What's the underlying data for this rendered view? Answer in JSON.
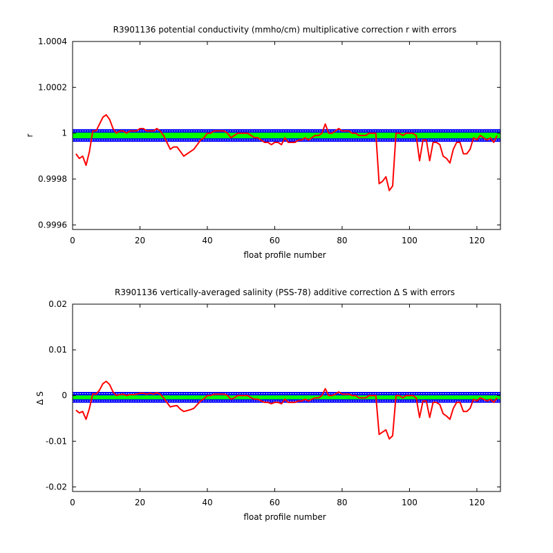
{
  "chart_data": [
    {
      "type": "line",
      "title": "R3901136 potential conductivity (mmho/cm) multiplicative correction r with errors",
      "xlabel": "float profile number",
      "ylabel": "r",
      "xlim": [
        0,
        127
      ],
      "ylim": [
        0.99958,
        1.0004
      ],
      "xticks": [
        0,
        20,
        40,
        60,
        80,
        100,
        120
      ],
      "xtick_labels": [
        "0",
        "20",
        "40",
        "60",
        "80",
        "100",
        "120"
      ],
      "yticks": [
        0.9996,
        0.9998,
        1,
        1.0002,
        1.0004
      ],
      "ytick_labels": [
        "0.9996",
        "0.9998",
        "1",
        "1.0002",
        "1.0004"
      ],
      "grid": false,
      "band": {
        "lower": 0.99997,
        "upper": 1.00001,
        "fill_color": "#00ff00",
        "line_color": "#0000ff",
        "dotted_color": "#ffffff"
      },
      "series": [
        {
          "color": "#ff0000",
          "x": [
            1,
            2,
            3,
            4,
            5,
            6,
            7,
            8,
            9,
            10,
            11,
            12,
            13,
            14,
            15,
            16,
            17,
            18,
            19,
            20,
            21,
            22,
            23,
            24,
            25,
            26,
            27,
            28,
            29,
            30,
            31,
            32,
            33,
            34,
            35,
            36,
            37,
            38,
            39,
            40,
            41,
            42,
            43,
            44,
            45,
            46,
            47,
            48,
            49,
            50,
            51,
            52,
            53,
            54,
            55,
            56,
            57,
            58,
            59,
            60,
            61,
            62,
            63,
            64,
            65,
            66,
            67,
            68,
            69,
            70,
            71,
            72,
            73,
            74,
            75,
            76,
            77,
            78,
            79,
            80,
            81,
            82,
            83,
            84,
            85,
            86,
            87,
            88,
            89,
            90,
            91,
            92,
            93,
            94,
            95,
            96,
            97,
            98,
            99,
            100,
            101,
            102,
            103,
            104,
            105,
            106,
            107,
            108,
            109,
            110,
            111,
            112,
            113,
            114,
            115,
            116,
            117,
            118,
            119,
            120,
            121,
            122,
            123,
            124,
            125,
            126
          ],
          "y": [
            0.99991,
            0.99989,
            0.9999,
            0.99986,
            0.99992,
            1.00001,
            1.00001,
            1.00004,
            1.00007,
            1.00008,
            1.00006,
            1.00002,
            1.0,
            1.00001,
            1.00001,
            1.0,
            1.00001,
            1.00001,
            1.00001,
            1.00002,
            1.00002,
            1.00001,
            1.00001,
            1.00001,
            1.00002,
            1.00001,
            0.99999,
            0.99996,
            0.99993,
            0.99994,
            0.99994,
            0.99992,
            0.9999,
            0.99991,
            0.99992,
            0.99993,
            0.99995,
            0.99997,
            0.99998,
            1.0,
            1.0,
            1.00001,
            1.00001,
            1.00001,
            1.00001,
            1.0,
            0.99998,
            0.99999,
            1.0,
            1.0,
            1.0,
            1.0,
            0.99999,
            0.99998,
            0.99998,
            0.99997,
            0.99996,
            0.99996,
            0.99995,
            0.99996,
            0.99996,
            0.99995,
            0.99998,
            0.99996,
            0.99996,
            0.99996,
            0.99997,
            0.99997,
            0.99998,
            0.99997,
            0.99998,
            0.99999,
            0.99999,
            1.0,
            1.00004,
            1.0,
            1.0,
            1.00001,
            1.00002,
            1.00001,
            1.00001,
            1.00001,
            1.0,
            1.0,
            0.99999,
            0.99999,
            0.99999,
            1.0,
            1.0,
            1.0,
            0.99978,
            0.99979,
            0.99981,
            0.99975,
            0.99977,
            1.0,
            1.0,
            0.99999,
            1.0,
            1.0,
            1.0,
            0.99999,
            0.99988,
            0.99997,
            0.99997,
            0.99988,
            0.99996,
            0.99996,
            0.99995,
            0.9999,
            0.99989,
            0.99987,
            0.99993,
            0.99996,
            0.99996,
            0.99991,
            0.99991,
            0.99993,
            0.99998,
            0.99997,
            0.99999,
            0.99998,
            0.99997,
            0.99998,
            0.99996,
            0.99999
          ]
        }
      ]
    },
    {
      "type": "line",
      "title": "R3901136 vertically-averaged salinity (PSS-78) additive correction Δ S with errors",
      "xlabel": "float profile number",
      "ylabel": "Δ S",
      "xlim": [
        0,
        127
      ],
      "ylim": [
        -0.021,
        0.02
      ],
      "xticks": [
        0,
        20,
        40,
        60,
        80,
        100,
        120
      ],
      "xtick_labels": [
        "0",
        "20",
        "40",
        "60",
        "80",
        "100",
        "120"
      ],
      "yticks": [
        -0.02,
        -0.01,
        0,
        0.01,
        0.02
      ],
      "ytick_labels": [
        "-0.02",
        "-0.01",
        "0",
        "0.01",
        "0.02"
      ],
      "grid": false,
      "band": {
        "lower": -0.0012,
        "upper": 0.0004,
        "fill_color": "#00ff00",
        "line_color": "#0000ff",
        "dotted_color": "#ffffff"
      },
      "series": [
        {
          "color": "#ff0000",
          "x": [
            1,
            2,
            3,
            4,
            5,
            6,
            7,
            8,
            9,
            10,
            11,
            12,
            13,
            14,
            15,
            16,
            17,
            18,
            19,
            20,
            21,
            22,
            23,
            24,
            25,
            26,
            27,
            28,
            29,
            30,
            31,
            32,
            33,
            34,
            35,
            36,
            37,
            38,
            39,
            40,
            41,
            42,
            43,
            44,
            45,
            46,
            47,
            48,
            49,
            50,
            51,
            52,
            53,
            54,
            55,
            56,
            57,
            58,
            59,
            60,
            61,
            62,
            63,
            64,
            65,
            66,
            67,
            68,
            69,
            70,
            71,
            72,
            73,
            74,
            75,
            76,
            77,
            78,
            79,
            80,
            81,
            82,
            83,
            84,
            85,
            86,
            87,
            88,
            89,
            90,
            91,
            92,
            93,
            94,
            95,
            96,
            97,
            98,
            99,
            100,
            101,
            102,
            103,
            104,
            105,
            106,
            107,
            108,
            109,
            110,
            111,
            112,
            113,
            114,
            115,
            116,
            117,
            118,
            119,
            120,
            121,
            122,
            123,
            124,
            125,
            126
          ],
          "y": [
            -0.0032,
            -0.0038,
            -0.0035,
            -0.0052,
            -0.0028,
            0.0004,
            0.0003,
            0.0012,
            0.0026,
            0.0031,
            0.0024,
            0.0008,
            0.0,
            0.0002,
            0.0003,
            0.0,
            0.0002,
            0.0002,
            0.0003,
            0.0005,
            0.0005,
            0.0003,
            0.0005,
            0.0003,
            0.0006,
            0.0003,
            -0.0005,
            -0.0015,
            -0.0025,
            -0.0023,
            -0.0022,
            -0.003,
            -0.0035,
            -0.0033,
            -0.0031,
            -0.0028,
            -0.002,
            -0.0012,
            -0.0007,
            0.0,
            0.0,
            0.0003,
            0.0003,
            0.0003,
            0.0003,
            0.0,
            -0.0008,
            -0.0005,
            0.0,
            0.0,
            0.0,
            0.0,
            -0.0005,
            -0.0008,
            -0.0008,
            -0.0012,
            -0.0015,
            -0.0015,
            -0.0018,
            -0.0015,
            -0.0015,
            -0.0018,
            -0.0008,
            -0.0015,
            -0.0015,
            -0.0015,
            -0.0012,
            -0.0012,
            -0.0008,
            -0.0012,
            -0.0008,
            -0.0005,
            -0.0005,
            0.0,
            0.0015,
            0.0,
            0.0,
            0.0003,
            0.0008,
            0.0003,
            0.0003,
            0.0003,
            0.0,
            0.0,
            -0.0005,
            -0.0005,
            -0.0005,
            0.0,
            0.0,
            0.0,
            -0.0085,
            -0.008,
            -0.0075,
            -0.0095,
            -0.0088,
            0.0,
            0.0,
            -0.0005,
            0.0,
            0.0,
            0.0,
            -0.0005,
            -0.0048,
            -0.0012,
            -0.0012,
            -0.0048,
            -0.0015,
            -0.0015,
            -0.002,
            -0.004,
            -0.0045,
            -0.0052,
            -0.0028,
            -0.0015,
            -0.0015,
            -0.0035,
            -0.0035,
            -0.0028,
            -0.0008,
            -0.0012,
            -0.0005,
            -0.0008,
            -0.0012,
            -0.0008,
            -0.0015,
            -0.0005
          ]
        }
      ]
    }
  ]
}
